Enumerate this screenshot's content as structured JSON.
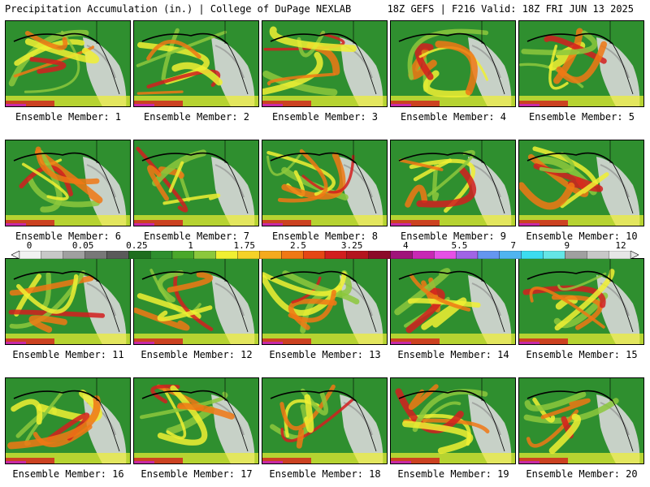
{
  "header": {
    "left": "Precipitation Accumulation (in.) | College of DuPage NEXLAB",
    "right": "18Z GEFS | F216 Valid: 18Z FRI JUN 13 2025"
  },
  "caption_prefix": "Ensemble Member: ",
  "members": [
    1,
    2,
    3,
    4,
    5,
    6,
    7,
    8,
    9,
    10,
    11,
    12,
    13,
    14,
    15,
    16,
    17,
    18,
    19,
    20
  ],
  "colorbar": {
    "tick_labels": [
      "0",
      "0.05",
      "0.25",
      "1",
      "1.75",
      "2.5",
      "3.25",
      "4",
      "5.5",
      "7",
      "9",
      "12"
    ],
    "colors": [
      "#f2f2f2",
      "#c8c8c8",
      "#a0a0a0",
      "#787878",
      "#5a5a5a",
      "#1e6e1e",
      "#2f8f2f",
      "#4aa82a",
      "#8cc83c",
      "#f0f032",
      "#f5d228",
      "#f5aa1e",
      "#f07814",
      "#e64614",
      "#d21e1e",
      "#b4141e",
      "#8c0a28",
      "#a0147a",
      "#c828b4",
      "#e650e6",
      "#a064e6",
      "#6496f0",
      "#50b4f0",
      "#3cdcf0",
      "#64e6e6",
      "#a0a0a0",
      "#c8c8c8",
      "#e6e6e6"
    ]
  },
  "map_colors": {
    "ocean_dry": "#2f8f2f",
    "land_snow": "#d8d8d8",
    "light": "#8cc83c",
    "moderate": "#f0f032",
    "heavy": "#f07814",
    "extreme": "#d21e1e",
    "very_extreme": "#c828b4"
  }
}
